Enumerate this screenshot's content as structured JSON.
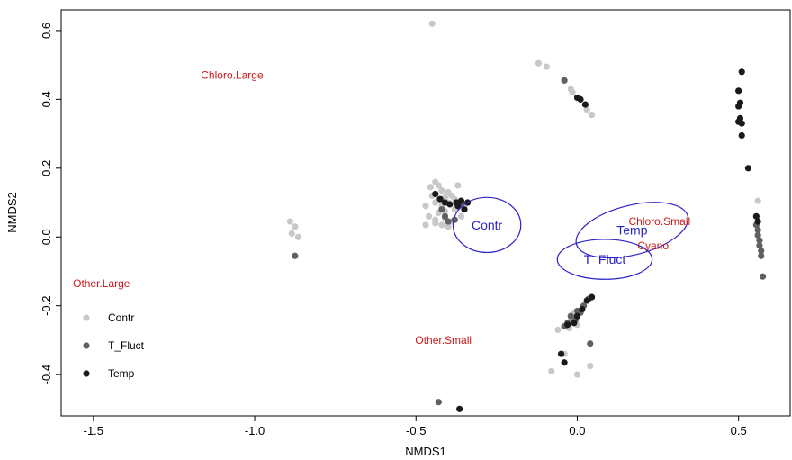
{
  "chart_data": {
    "type": "scatter",
    "xlabel": "NMDS1",
    "ylabel": "NMDS2",
    "xlim": [
      -1.6,
      0.66
    ],
    "ylim": [
      -0.52,
      0.66
    ],
    "xticks": [
      "-1.5",
      "-1.0",
      "-0.5",
      "0.0",
      "0.5"
    ],
    "xtick_values": [
      -1.5,
      -1.0,
      -0.5,
      0.0,
      0.5
    ],
    "yticks": [
      "-0.4",
      "-0.2",
      "0.0",
      "0.2",
      "0.4",
      "0.6"
    ],
    "ytick_values": [
      -0.4,
      -0.2,
      0.0,
      0.2,
      0.4,
      0.6
    ],
    "grid": false,
    "legend": "bottom-left",
    "series": [
      {
        "name": "Contr",
        "color": "#c8c8c8",
        "points": [
          [
            -0.45,
            0.62
          ],
          [
            -0.12,
            0.505
          ],
          [
            -0.095,
            0.495
          ],
          [
            -0.02,
            0.43
          ],
          [
            -0.015,
            0.42
          ],
          [
            0.03,
            0.37
          ],
          [
            0.045,
            0.355
          ],
          [
            0.56,
            0.105
          ],
          [
            -0.89,
            0.045
          ],
          [
            -0.875,
            0.03
          ],
          [
            -0.885,
            0.01
          ],
          [
            -0.865,
            0.0
          ],
          [
            -0.44,
            0.16
          ],
          [
            -0.43,
            0.15
          ],
          [
            -0.455,
            0.145
          ],
          [
            -0.37,
            0.15
          ],
          [
            -0.42,
            0.135
          ],
          [
            -0.4,
            0.13
          ],
          [
            -0.45,
            0.12
          ],
          [
            -0.43,
            0.11
          ],
          [
            -0.41,
            0.115
          ],
          [
            -0.39,
            0.12
          ],
          [
            -0.44,
            0.1
          ],
          [
            -0.42,
            0.09
          ],
          [
            -0.4,
            0.1
          ],
          [
            -0.38,
            0.11
          ],
          [
            -0.47,
            0.09
          ],
          [
            -0.41,
            0.075
          ],
          [
            -0.38,
            0.08
          ],
          [
            -0.43,
            0.07
          ],
          [
            -0.46,
            0.06
          ],
          [
            -0.44,
            0.05
          ],
          [
            -0.41,
            0.055
          ],
          [
            -0.44,
            0.04
          ],
          [
            -0.42,
            0.035
          ],
          [
            -0.47,
            0.035
          ],
          [
            -0.39,
            0.045
          ],
          [
            -0.4,
            0.03
          ],
          [
            -0.36,
            0.06
          ],
          [
            -0.35,
            0.09
          ],
          [
            -0.06,
            -0.27
          ],
          [
            0.0,
            -0.255
          ],
          [
            -0.02,
            -0.24
          ],
          [
            -0.01,
            -0.22
          ],
          [
            -0.025,
            -0.265
          ],
          [
            -0.08,
            -0.39
          ],
          [
            0.0,
            -0.4
          ],
          [
            0.04,
            -0.375
          ],
          [
            -0.04,
            -0.34
          ]
        ]
      },
      {
        "name": "T_Fluct",
        "color": "#606060",
        "points": [
          [
            -0.04,
            0.455
          ],
          [
            -0.875,
            -0.055
          ],
          [
            -0.42,
            0.08
          ],
          [
            -0.41,
            0.06
          ],
          [
            -0.38,
            0.05
          ],
          [
            -0.4,
            0.045
          ],
          [
            -0.36,
            0.1
          ],
          [
            0.555,
            0.035
          ],
          [
            0.56,
            0.02
          ],
          [
            0.56,
            0.005
          ],
          [
            0.565,
            -0.01
          ],
          [
            0.565,
            -0.025
          ],
          [
            0.57,
            -0.04
          ],
          [
            0.57,
            -0.055
          ],
          [
            0.575,
            -0.115
          ],
          [
            -0.03,
            -0.25
          ],
          [
            -0.02,
            -0.23
          ],
          [
            0.0,
            -0.215
          ],
          [
            0.01,
            -0.22
          ],
          [
            0.02,
            -0.2
          ],
          [
            0.035,
            -0.18
          ],
          [
            -0.005,
            -0.24
          ],
          [
            0.04,
            -0.31
          ],
          [
            -0.04,
            -0.26
          ],
          [
            -0.43,
            -0.48
          ]
        ]
      },
      {
        "name": "Temp",
        "color": "#1a1a1a",
        "points": [
          [
            0.0,
            0.405
          ],
          [
            0.01,
            0.4
          ],
          [
            0.025,
            0.385
          ],
          [
            0.51,
            0.48
          ],
          [
            0.5,
            0.425
          ],
          [
            0.505,
            0.39
          ],
          [
            0.5,
            0.38
          ],
          [
            0.505,
            0.345
          ],
          [
            0.5,
            0.335
          ],
          [
            0.51,
            0.33
          ],
          [
            0.51,
            0.295
          ],
          [
            0.53,
            0.2
          ],
          [
            0.555,
            0.06
          ],
          [
            0.56,
            0.045
          ],
          [
            -0.44,
            0.125
          ],
          [
            -0.425,
            0.11
          ],
          [
            -0.41,
            0.1
          ],
          [
            -0.395,
            0.095
          ],
          [
            -0.375,
            0.1
          ],
          [
            -0.36,
            0.105
          ],
          [
            -0.34,
            0.1
          ],
          [
            -0.37,
            0.09
          ],
          [
            -0.35,
            0.08
          ],
          [
            0.0,
            -0.23
          ],
          [
            0.015,
            -0.21
          ],
          [
            0.03,
            -0.185
          ],
          [
            0.045,
            -0.175
          ],
          [
            -0.01,
            -0.25
          ],
          [
            -0.03,
            -0.255
          ],
          [
            -0.05,
            -0.34
          ],
          [
            -0.04,
            -0.365
          ],
          [
            -0.365,
            -0.5
          ]
        ]
      }
    ],
    "ellipses": [
      {
        "label": "Contr",
        "cx": -0.28,
        "cy": 0.035,
        "rx": 0.105,
        "ry": 0.08,
        "angle": 0
      },
      {
        "label": "Temp",
        "cx": 0.17,
        "cy": 0.02,
        "rx": 0.178,
        "ry": 0.072,
        "angle": 14
      },
      {
        "label": "T_Fluct",
        "cx": 0.085,
        "cy": -0.065,
        "rx": 0.147,
        "ry": 0.058,
        "angle": 0
      }
    ],
    "species_labels": [
      {
        "label": "Chloro.Large",
        "x": -1.07,
        "y": 0.47
      },
      {
        "label": "Chloro.Small",
        "x": 0.255,
        "y": 0.045
      },
      {
        "label": "Cyano",
        "x": 0.235,
        "y": -0.025
      },
      {
        "label": "Other.Large",
        "x": -1.475,
        "y": -0.135
      },
      {
        "label": "Other.Small",
        "x": -0.415,
        "y": -0.3
      }
    ],
    "colors": {
      "ellipse": "#2a22c8",
      "species": "#cc1a1a"
    }
  }
}
